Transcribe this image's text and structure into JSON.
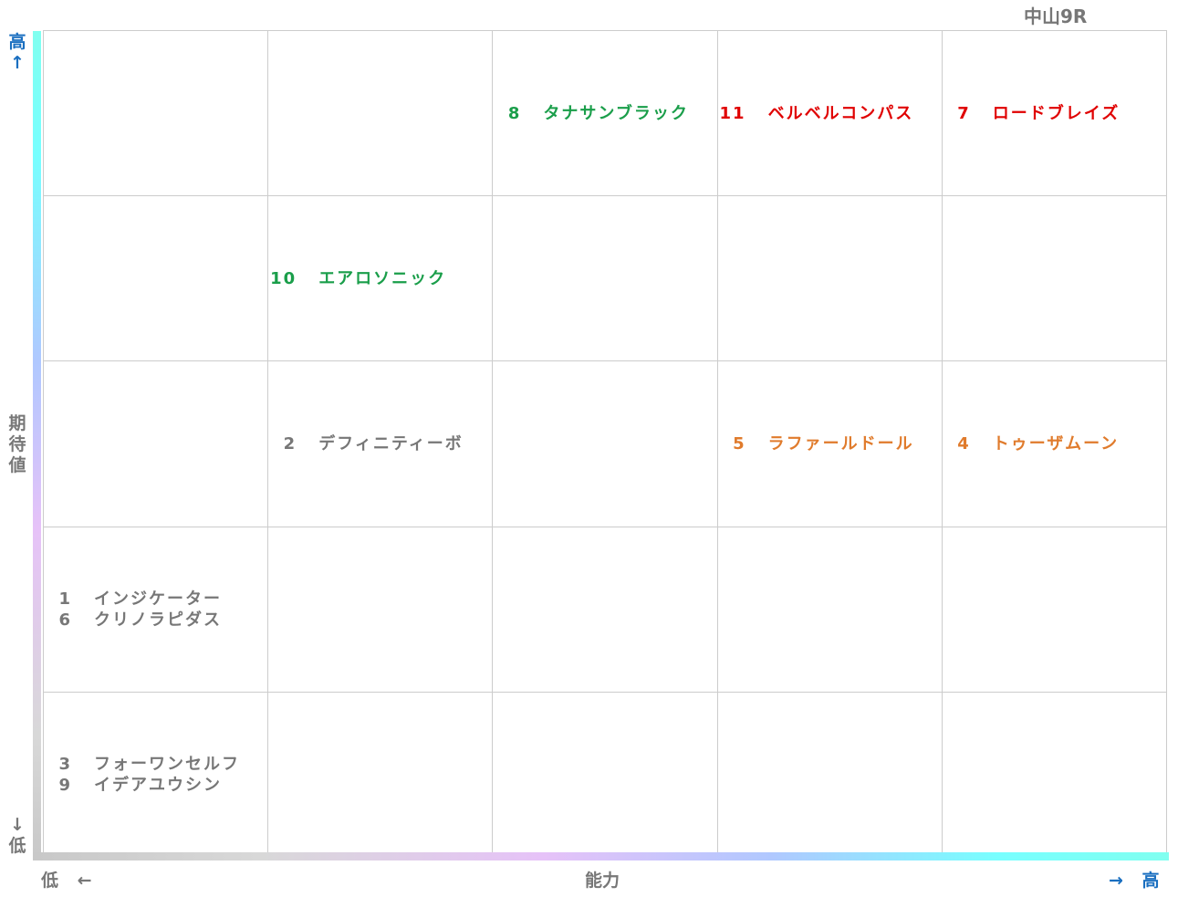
{
  "title": "中山9R",
  "y_axis": {
    "high": "高↑",
    "label": "期待値",
    "low": "↓低"
  },
  "x_axis": {
    "low": "低 ←",
    "label": "能力",
    "high": "→ 高"
  },
  "grid": {
    "rows": [
      [
        [],
        [],
        [
          {
            "number": 8,
            "name": "タナサンブラック",
            "color": "#1a9e4a"
          }
        ],
        [
          {
            "number": 11,
            "name": "ベルベルコンパス",
            "color": "#e00000"
          }
        ],
        [
          {
            "number": 7,
            "name": "ロードブレイズ",
            "color": "#e00000"
          }
        ]
      ],
      [
        [],
        [
          {
            "number": 10,
            "name": "エアロソニック",
            "color": "#1a9e4a"
          }
        ],
        [],
        [],
        []
      ],
      [
        [],
        [
          {
            "number": 2,
            "name": "デフィニティーボ",
            "color": "#777777"
          }
        ],
        [],
        [
          {
            "number": 5,
            "name": "ラファールドール",
            "color": "#e07b2c"
          }
        ],
        [
          {
            "number": 4,
            "name": "トゥーザムーン",
            "color": "#e07b2c"
          }
        ]
      ],
      [
        [
          {
            "number": 1,
            "name": "インジケーター",
            "color": "#777777"
          },
          {
            "number": 6,
            "name": "クリノラピダス",
            "color": "#777777"
          }
        ],
        [],
        [],
        [],
        []
      ],
      [
        [
          {
            "number": 3,
            "name": "フォーワンセルフ",
            "color": "#777777"
          },
          {
            "number": 9,
            "name": "イデアユウシン",
            "color": "#777777"
          }
        ],
        [],
        [],
        [],
        []
      ]
    ]
  }
}
